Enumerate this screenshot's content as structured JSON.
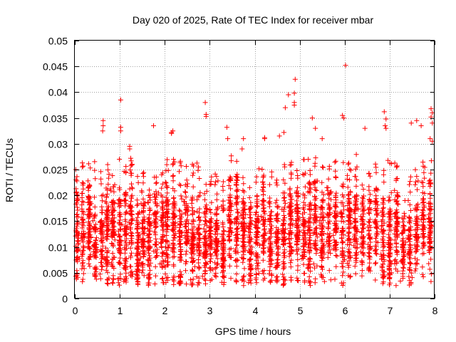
{
  "chart_data": {
    "type": "scatter",
    "title": "Day 020 of 2025, Rate Of TEC Index for receiver mbar",
    "xlabel": "GPS time / hours",
    "ylabel": "ROTI / TECUs",
    "xlim": [
      0,
      8
    ],
    "ylim": [
      0,
      0.05
    ],
    "xticks": [
      "0",
      "1",
      "2",
      "3",
      "4",
      "5",
      "6",
      "7",
      "8"
    ],
    "yticks": [
      "0",
      "0.005",
      "0.01",
      "0.015",
      "0.02",
      "0.025",
      "0.03",
      "0.035",
      "0.04",
      "0.045",
      "0.05"
    ],
    "grid": true,
    "marker": "+",
    "color": "#ff0000",
    "series": [
      {
        "name": "ROTI",
        "cluster_centers_hours": [
          0.05,
          0.18,
          0.32,
          0.45,
          0.6,
          0.72,
          0.85,
          1.0,
          1.13,
          1.25,
          1.4,
          1.52,
          1.65,
          1.8,
          1.95,
          2.05,
          2.2,
          2.35,
          2.48,
          2.62,
          2.75,
          2.9,
          3.02,
          3.15,
          3.3,
          3.45,
          3.6,
          3.75,
          3.9,
          4.05,
          4.2,
          4.35,
          4.5,
          4.65,
          4.8,
          4.95,
          5.1,
          5.22,
          5.35,
          5.5,
          5.65,
          5.8,
          5.95,
          6.1,
          6.25,
          6.4,
          6.55,
          6.7,
          6.85,
          7.0,
          7.15,
          7.3,
          7.45,
          7.6,
          7.75,
          7.9
        ],
        "typical_range": [
          0.003,
          0.027
        ],
        "points": [
          [
            0.02,
            0.025
          ],
          [
            0.03,
            0.0205
          ],
          [
            0.63,
            0.0345
          ],
          [
            0.63,
            0.0335
          ],
          [
            0.62,
            0.0325
          ],
          [
            1.02,
            0.0385
          ],
          [
            1.02,
            0.0332
          ],
          [
            1.02,
            0.0325
          ],
          [
            1.22,
            0.0295
          ],
          [
            1.22,
            0.029
          ],
          [
            1.75,
            0.0335
          ],
          [
            2.15,
            0.0322
          ],
          [
            2.15,
            0.032
          ],
          [
            2.18,
            0.0325
          ],
          [
            2.9,
            0.038
          ],
          [
            2.92,
            0.0357
          ],
          [
            2.92,
            0.0353
          ],
          [
            3.38,
            0.0332
          ],
          [
            3.4,
            0.031
          ],
          [
            3.75,
            0.031
          ],
          [
            3.72,
            0.029
          ],
          [
            4.22,
            0.0312
          ],
          [
            4.22,
            0.031
          ],
          [
            4.55,
            0.0315
          ],
          [
            4.65,
            0.0322
          ],
          [
            4.68,
            0.037
          ],
          [
            4.75,
            0.0395
          ],
          [
            4.9,
            0.0425
          ],
          [
            4.88,
            0.0398
          ],
          [
            4.88,
            0.038
          ],
          [
            4.88,
            0.0375
          ],
          [
            5.28,
            0.035
          ],
          [
            5.35,
            0.033
          ],
          [
            5.5,
            0.031
          ],
          [
            5.95,
            0.0355
          ],
          [
            5.98,
            0.035
          ],
          [
            6.02,
            0.0452
          ],
          [
            6.45,
            0.033
          ],
          [
            6.88,
            0.0362
          ],
          [
            6.92,
            0.0348
          ],
          [
            6.9,
            0.0335
          ],
          [
            6.92,
            0.033
          ],
          [
            7.48,
            0.034
          ],
          [
            7.6,
            0.0345
          ],
          [
            7.7,
            0.0335
          ],
          [
            7.92,
            0.0368
          ],
          [
            7.95,
            0.036
          ],
          [
            7.92,
            0.0352
          ],
          [
            7.95,
            0.034
          ],
          [
            7.9,
            0.031
          ],
          [
            7.95,
            0.0305
          ]
        ]
      }
    ]
  }
}
